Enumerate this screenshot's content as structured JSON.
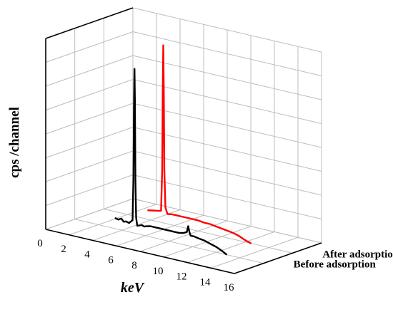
{
  "chart_data": {
    "type": "line",
    "projection": "3d",
    "xlabel": "keV",
    "ylabel": "cps /channel",
    "x_ticks": [
      "0",
      "2",
      "4",
      "6",
      "8",
      "10",
      "12",
      "14",
      "16"
    ],
    "xlim": [
      0,
      16
    ],
    "grid": true,
    "series": [
      {
        "name": "Before adsorption",
        "color": "#000000",
        "points": [
          [
            3.4,
            12
          ],
          [
            3.7,
            11
          ],
          [
            3.95,
            13
          ],
          [
            4.15,
            10
          ],
          [
            4.35,
            11
          ],
          [
            4.6,
            10
          ],
          [
            4.75,
            12
          ],
          [
            4.9,
            14
          ],
          [
            4.97,
            60
          ],
          [
            5.02,
            140
          ],
          [
            5.06,
            185
          ],
          [
            5.1,
            150
          ],
          [
            5.14,
            60
          ],
          [
            5.2,
            18
          ],
          [
            5.3,
            9
          ],
          [
            5.5,
            10
          ],
          [
            5.7,
            11
          ],
          [
            5.9,
            10
          ],
          [
            6.1,
            11
          ],
          [
            6.4,
            12
          ],
          [
            6.8,
            12
          ],
          [
            7.2,
            12
          ],
          [
            7.6,
            12
          ],
          [
            8.0,
            12
          ],
          [
            8.4,
            12
          ],
          [
            8.8,
            12
          ],
          [
            9.2,
            13
          ],
          [
            9.5,
            15
          ],
          [
            9.62,
            22
          ],
          [
            9.72,
            16
          ],
          [
            9.82,
            12
          ],
          [
            10.1,
            12
          ],
          [
            10.5,
            11
          ],
          [
            11.0,
            10
          ],
          [
            11.5,
            8
          ],
          [
            12.0,
            6
          ],
          [
            12.5,
            3
          ],
          [
            12.9,
            0
          ]
        ]
      },
      {
        "name": "After adsorption",
        "color": "#ff0000",
        "points": [
          [
            3.7,
            10
          ],
          [
            4.1,
            11
          ],
          [
            4.5,
            12
          ],
          [
            4.85,
            13
          ],
          [
            4.95,
            60
          ],
          [
            5.0,
            150
          ],
          [
            5.04,
            200
          ],
          [
            5.08,
            150
          ],
          [
            5.13,
            60
          ],
          [
            5.22,
            18
          ],
          [
            5.4,
            11
          ],
          [
            5.8,
            12
          ],
          [
            6.2,
            12
          ],
          [
            6.6,
            12
          ],
          [
            7.0,
            12
          ],
          [
            7.5,
            12
          ],
          [
            8.0,
            12
          ],
          [
            8.5,
            11
          ],
          [
            9.0,
            11
          ],
          [
            9.5,
            10
          ],
          [
            10.0,
            9
          ],
          [
            10.5,
            8
          ],
          [
            11.0,
            7
          ],
          [
            11.5,
            5
          ],
          [
            12.0,
            2
          ],
          [
            12.5,
            0
          ]
        ]
      }
    ]
  }
}
